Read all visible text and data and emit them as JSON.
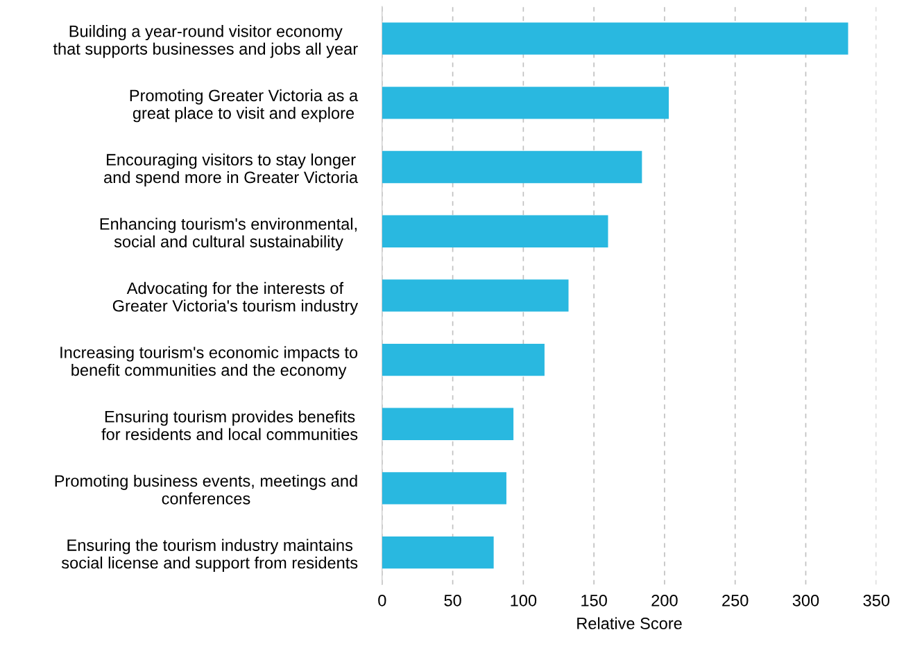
{
  "chart_data": {
    "type": "bar",
    "orientation": "horizontal",
    "xlabel": "Relative Score",
    "categories": [
      "Building a year-round visitor economy\nthat supports businesses and jobs all year",
      "Promoting Greater Victoria as a\ngreat place to visit and explore",
      "Encouraging visitors to stay longer\nand spend more in Greater Victoria",
      "Enhancing tourism's environmental,\nsocial and cultural sustainability",
      "Advocating for the interests of\nGreater Victoria's tourism industry",
      "Increasing tourism's economic impacts to\nbenefit communities and the economy",
      "Ensuring tourism provides benefits\nfor residents and local communities",
      "Promoting business events, meetings and\nconferences",
      "Ensuring the tourism industry maintains\nsocial license and support from residents"
    ],
    "values": [
      330,
      203,
      184,
      160,
      132,
      115,
      93,
      88,
      79
    ],
    "color": "#29b8e0",
    "xlim": [
      0,
      350
    ],
    "xticks": [
      0,
      50,
      100,
      150,
      200,
      250,
      300,
      350
    ],
    "grid": "x"
  }
}
